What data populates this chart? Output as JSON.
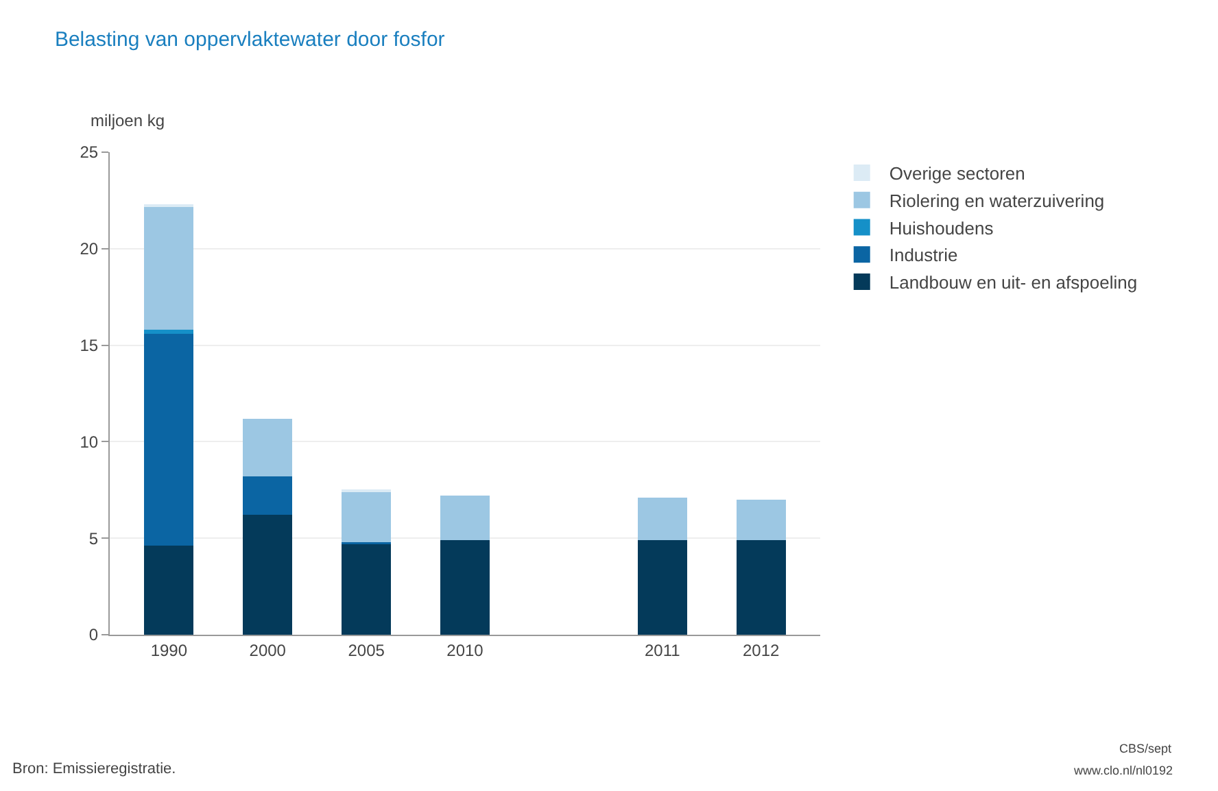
{
  "chart_data": {
    "type": "bar",
    "stacked": true,
    "title": "Belasting van oppervlaktewater door fosfor",
    "ylabel": "miljoen kg",
    "categories": [
      "1990",
      "2000",
      "2005",
      "2010",
      null,
      "2011",
      "2012"
    ],
    "series": [
      {
        "name": "Landbouw en uit- en afspoeling",
        "color": "#043a5a",
        "values": [
          4.6,
          6.2,
          4.7,
          4.9,
          null,
          4.9,
          4.9
        ]
      },
      {
        "name": "Industrie",
        "color": "#0b65a3",
        "values": [
          11.0,
          2.0,
          0.1,
          0.0,
          null,
          0.0,
          0.0
        ]
      },
      {
        "name": "Huishoudens",
        "color": "#1590c8",
        "values": [
          0.2,
          0.0,
          0.0,
          0.0,
          null,
          0.0,
          0.0
        ]
      },
      {
        "name": "Riolering en waterzuivering",
        "color": "#9cc7e3",
        "values": [
          6.4,
          3.0,
          2.6,
          2.3,
          null,
          2.2,
          2.1
        ]
      },
      {
        "name": "Overige sectoren",
        "color": "#dcebf5",
        "values": [
          0.1,
          0.0,
          0.1,
          0.0,
          null,
          0.0,
          0.0
        ]
      }
    ],
    "ylim": [
      0,
      25
    ],
    "yticks": [
      0,
      5,
      10,
      15,
      20,
      25
    ],
    "grid": "y",
    "legend": "top right",
    "annotations": [
      "Bron: Emissieregistratie.",
      "CBS/sept",
      "www.clo.nl/nl0192"
    ]
  }
}
